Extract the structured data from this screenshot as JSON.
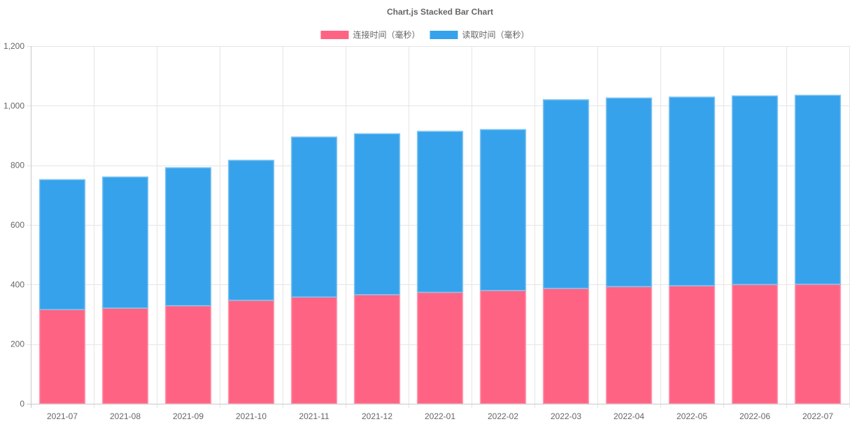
{
  "chart_data": {
    "type": "bar",
    "stacked": true,
    "title": "Chart.js Stacked Bar Chart",
    "categories": [
      "2021-07",
      "2021-08",
      "2021-09",
      "2021-10",
      "2021-11",
      "2021-12",
      "2022-01",
      "2022-02",
      "2022-03",
      "2022-04",
      "2022-05",
      "2022-06",
      "2022-07"
    ],
    "series": [
      {
        "name": "连接时间（毫秒）",
        "color": "#ff6384",
        "values": [
          316,
          321,
          329,
          347,
          358,
          366,
          374,
          380,
          387,
          393,
          396,
          400,
          401
        ]
      },
      {
        "name": "读取时间（毫秒）",
        "color": "#36a2eb",
        "values": [
          436,
          440,
          463,
          470,
          537,
          540,
          540,
          540,
          633,
          633,
          633,
          633,
          634
        ]
      }
    ],
    "ylim": [
      0,
      1200
    ],
    "yticks": [
      0,
      200,
      400,
      600,
      800,
      1000,
      1200
    ],
    "ytick_labels": [
      "0",
      "200",
      "400",
      "600",
      "800",
      "1,000",
      "1,200"
    ],
    "xlabel": "",
    "ylabel": "",
    "grid": true,
    "legend_position": "top"
  }
}
